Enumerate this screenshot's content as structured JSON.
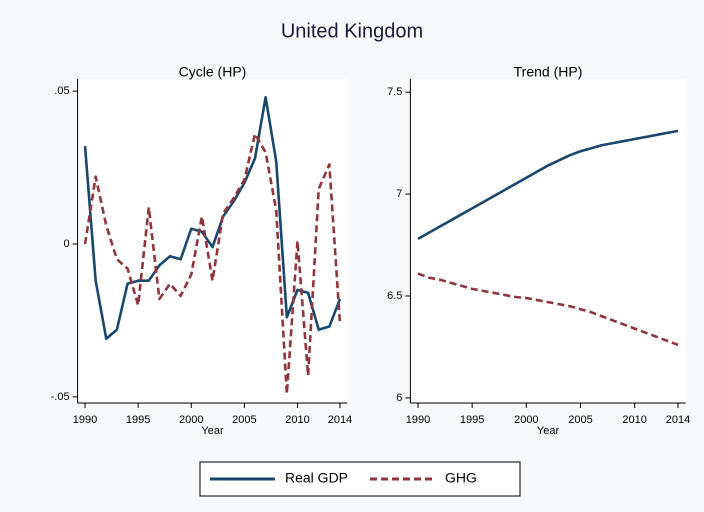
{
  "title": "United Kingdom",
  "legend_position": "bottom",
  "chart_data": [
    {
      "type": "line",
      "title": "Cycle (HP)",
      "xlabel": "Year",
      "x": [
        1990,
        1991,
        1992,
        1993,
        1994,
        1995,
        1996,
        1997,
        1998,
        1999,
        2000,
        2001,
        2002,
        2003,
        2004,
        2005,
        2006,
        2007,
        2008,
        2009,
        2010,
        2011,
        2012,
        2013,
        2014
      ],
      "series": [
        {
          "name": "Real GDP",
          "color": "#1a476f",
          "dash": false,
          "values": [
            0.032,
            -0.012,
            -0.031,
            -0.028,
            -0.013,
            -0.012,
            -0.012,
            -0.007,
            -0.004,
            -0.005,
            0.005,
            0.004,
            -0.001,
            0.009,
            0.014,
            0.02,
            0.028,
            0.048,
            0.027,
            -0.024,
            -0.015,
            -0.016,
            -0.028,
            -0.027,
            -0.018
          ]
        },
        {
          "name": "GHG",
          "color": "#90353b",
          "dash": true,
          "values": [
            0.0,
            0.022,
            0.006,
            -0.005,
            -0.008,
            -0.02,
            0.012,
            -0.018,
            -0.013,
            -0.017,
            -0.01,
            0.009,
            -0.012,
            0.01,
            0.015,
            0.021,
            0.036,
            0.03,
            0.011,
            -0.049,
            0.001,
            -0.043,
            0.018,
            0.026,
            -0.026
          ]
        }
      ],
      "xlim": [
        1989.3,
        2014.7
      ],
      "ylim": [
        -0.052,
        0.052
      ],
      "xticks": [
        1990,
        1995,
        2000,
        2005,
        2010,
        2014
      ],
      "yticks": [
        {
          "value": -0.05,
          "label": "-.05"
        },
        0,
        {
          "value": 0.05,
          "label": ".05"
        }
      ],
      "grid": false
    },
    {
      "type": "line",
      "title": "Trend (HP)",
      "xlabel": "Year",
      "x": [
        1990,
        1991,
        1992,
        1993,
        1994,
        1995,
        1996,
        1997,
        1998,
        1999,
        2000,
        2001,
        2002,
        2003,
        2004,
        2005,
        2006,
        2007,
        2008,
        2009,
        2010,
        2011,
        2012,
        2013,
        2014
      ],
      "series": [
        {
          "name": "Real GDP",
          "color": "#1a476f",
          "dash": false,
          "values": [
            6.78,
            6.81,
            6.84,
            6.87,
            6.9,
            6.93,
            6.96,
            6.99,
            7.02,
            7.05,
            7.08,
            7.11,
            7.14,
            7.165,
            7.19,
            7.21,
            7.225,
            7.24,
            7.25,
            7.26,
            7.27,
            7.28,
            7.29,
            7.3,
            7.31
          ]
        },
        {
          "name": "GHG",
          "color": "#90353b",
          "dash": true,
          "values": [
            6.61,
            6.59,
            6.58,
            6.565,
            6.55,
            6.535,
            6.525,
            6.515,
            6.505,
            6.495,
            6.49,
            6.48,
            6.47,
            6.46,
            6.45,
            6.435,
            6.42,
            6.4,
            6.38,
            6.36,
            6.34,
            6.32,
            6.3,
            6.28,
            6.26
          ]
        }
      ],
      "xlim": [
        1989.3,
        2014.7
      ],
      "ylim": [
        5.975,
        7.535
      ],
      "xticks": [
        1990,
        1995,
        2000,
        2005,
        2010,
        2014
      ],
      "yticks": [
        6,
        6.5,
        7,
        7.5
      ],
      "grid": false
    }
  ]
}
